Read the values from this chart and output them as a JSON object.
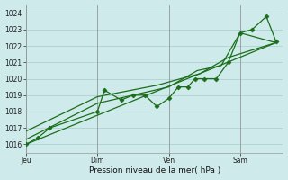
{
  "bg_color": "#ceeaea",
  "grid_color": "#aacccc",
  "line_color": "#1a6e1a",
  "xlabel": "Pression niveau de la mer( hPa )",
  "ylim": [
    1015.5,
    1024.5
  ],
  "yticks": [
    1016,
    1017,
    1018,
    1019,
    1020,
    1021,
    1022,
    1023,
    1024
  ],
  "xtick_pos": [
    0,
    3,
    6,
    9
  ],
  "xtick_labels": [
    "Jeu",
    "Dim",
    "Ven",
    "Sam"
  ],
  "xlim": [
    0,
    10.8
  ],
  "line1_x": [
    0,
    0.5,
    1.0,
    3.0,
    3.3,
    4.0,
    4.5,
    5.0,
    5.5,
    6.0,
    6.4,
    6.8,
    7.1,
    7.5,
    8.0,
    8.5,
    9.0,
    9.5,
    10.1,
    10.5
  ],
  "line1_y": [
    1016.0,
    1016.4,
    1017.0,
    1018.0,
    1019.3,
    1018.7,
    1019.0,
    1019.0,
    1018.3,
    1018.8,
    1019.5,
    1019.5,
    1020.0,
    1020.0,
    1020.0,
    1021.0,
    1022.8,
    1023.0,
    1023.8,
    1022.3
  ],
  "line2_x": [
    0,
    3.0,
    6.0,
    7.2,
    8.2,
    9.0,
    10.5
  ],
  "line2_y": [
    1016.3,
    1018.5,
    1019.5,
    1020.5,
    1020.8,
    1022.8,
    1022.2
  ],
  "line3_x": [
    0,
    3.0,
    5.5,
    6.5,
    7.3,
    8.5,
    10.5
  ],
  "line3_y": [
    1016.8,
    1018.9,
    1019.6,
    1020.0,
    1020.3,
    1021.3,
    1022.2
  ],
  "line4_x": [
    0,
    10.5
  ],
  "line4_y": [
    1016.0,
    1022.2
  ]
}
